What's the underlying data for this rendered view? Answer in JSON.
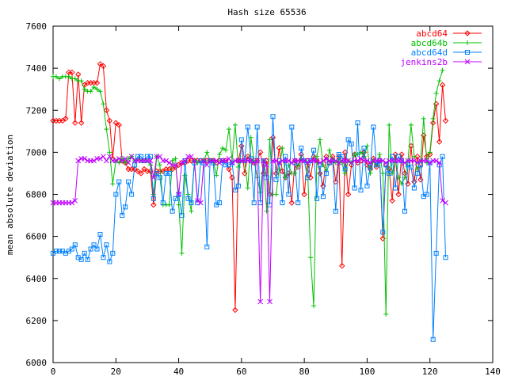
{
  "chart_data": {
    "type": "line",
    "title": "Hash size 65536",
    "xlabel": "",
    "ylabel": "mean absolute deviation",
    "xlim": [
      0,
      140
    ],
    "ylim": [
      6000,
      7600
    ],
    "x_ticks": [
      0,
      20,
      40,
      60,
      80,
      100,
      120,
      140
    ],
    "y_ticks": [
      6000,
      6200,
      6400,
      6600,
      6800,
      7000,
      7200,
      7400,
      7600
    ],
    "grid": false,
    "legend_position": "top-right",
    "series": [
      {
        "name": "abcd64",
        "color": "#ff0000",
        "marker": "diamond",
        "values": [
          7150,
          7150,
          7150,
          7150,
          7160,
          7380,
          7380,
          7140,
          7370,
          7140,
          7320,
          7330,
          7330,
          7330,
          7330,
          7420,
          7410,
          7200,
          7150,
          6970,
          7140,
          7130,
          6960,
          6950,
          6920,
          6920,
          6920,
          6910,
          6900,
          6920,
          6910,
          6910,
          6750,
          6910,
          6910,
          6910,
          6920,
          6920,
          6920,
          6930,
          6940,
          6950,
          6950,
          6960,
          6960,
          6960,
          6960,
          6960,
          6960,
          6960,
          6960,
          6960,
          6950,
          6960,
          6960,
          6960,
          6920,
          6880,
          6250,
          6960,
          7030,
          6900,
          6980,
          6960,
          6950,
          6960,
          7000,
          6900,
          6960,
          6800,
          7070,
          6900,
          7020,
          6910,
          6880,
          6900,
          6760,
          6960,
          6930,
          6990,
          6800,
          6960,
          6880,
          6980,
          6960,
          6900,
          6840,
          6980,
          6950,
          6980,
          6860,
          6980,
          6460,
          7000,
          6800,
          6940,
          6990,
          6950,
          6960,
          7000,
          6940,
          6920,
          6970,
          6930,
          6960,
          6590,
          6940,
          6920,
          6770,
          6990,
          6800,
          6990,
          6900,
          6850,
          7030,
          6860,
          6980,
          6870,
          7080,
          6980,
          6990,
          7140,
          7230,
          7050,
          7320,
          7150
        ]
      },
      {
        "name": "abcd64b",
        "color": "#00c000",
        "marker": "plus",
        "values": [
          7360,
          7360,
          7350,
          7360,
          7360,
          7360,
          7350,
          7350,
          7340,
          7340,
          7300,
          7290,
          7290,
          7310,
          7300,
          7290,
          7230,
          7110,
          7000,
          6850,
          6960,
          6950,
          6970,
          6950,
          6970,
          6980,
          6960,
          6970,
          6960,
          6960,
          6960,
          6940,
          6800,
          6980,
          6940,
          6750,
          6750,
          6750,
          6960,
          6970,
          6750,
          6520,
          6890,
          6800,
          6720,
          6960,
          6950,
          6950,
          6960,
          7000,
          6960,
          6960,
          6890,
          6990,
          7020,
          7010,
          7110,
          6960,
          7130,
          6930,
          6960,
          6960,
          6830,
          7070,
          6960,
          6880,
          6810,
          6960,
          6720,
          7060,
          6800,
          6800,
          6920,
          7020,
          6880,
          6940,
          6900,
          6900,
          6940,
          6970,
          6960,
          6950,
          6500,
          6270,
          6980,
          7060,
          6940,
          6910,
          7010,
          6960,
          6950,
          6970,
          6950,
          6900,
          6960,
          6950,
          6990,
          6990,
          7000,
          6980,
          7030,
          6900,
          6960,
          6940,
          6990,
          6900,
          6230,
          7130,
          6900,
          6960,
          6880,
          6850,
          6880,
          6960,
          7130,
          6980,
          6920,
          6960,
          7160,
          6950,
          7000,
          7160,
          7280,
          7340,
          7390
        ]
      },
      {
        "name": "abcd64d",
        "color": "#0080ff",
        "marker": "square",
        "values": [
          6520,
          6530,
          6530,
          6530,
          6520,
          6530,
          6540,
          6560,
          6500,
          6490,
          6520,
          6490,
          6540,
          6560,
          6540,
          6610,
          6500,
          6560,
          6480,
          6520,
          6800,
          6860,
          6700,
          6740,
          6860,
          6800,
          6940,
          6980,
          6980,
          6960,
          6980,
          6980,
          6780,
          6900,
          6880,
          6760,
          6900,
          6900,
          6720,
          6780,
          6800,
          6700,
          6960,
          6780,
          6760,
          6950,
          6760,
          6960,
          6950,
          6550,
          6960,
          6950,
          6750,
          6760,
          6960,
          6940,
          6940,
          6950,
          6820,
          6840,
          7060,
          6960,
          7120,
          6970,
          6760,
          7120,
          6760,
          6960,
          6880,
          6750,
          7170,
          6870,
          6960,
          6760,
          6980,
          6800,
          7120,
          6950,
          6760,
          7020,
          6960,
          6880,
          6960,
          7010,
          6780,
          6940,
          6790,
          6900,
          6950,
          6960,
          6720,
          6990,
          6980,
          6920,
          7060,
          7040,
          6830,
          7140,
          6820,
          7020,
          6840,
          6930,
          7120,
          6940,
          6960,
          6620,
          6940,
          6900,
          6980,
          6830,
          6980,
          6960,
          6720,
          6940,
          6930,
          6830,
          6900,
          6940,
          6790,
          6800,
          6950,
          6110,
          6520,
          6940,
          6980,
          6500
        ]
      },
      {
        "name": "jenkins2b",
        "color": "#c000ff",
        "marker": "cross",
        "values": [
          6760,
          6760,
          6760,
          6760,
          6760,
          6760,
          6760,
          6770,
          6960,
          6970,
          6970,
          6960,
          6960,
          6960,
          6970,
          6970,
          6980,
          6960,
          6980,
          6960,
          6960,
          6970,
          6960,
          6970,
          6950,
          6980,
          6960,
          6960,
          6960,
          6960,
          6960,
          6960,
          6880,
          6980,
          6980,
          6960,
          6960,
          6950,
          6940,
          6940,
          6800,
          6950,
          6960,
          6980,
          6980,
          6960,
          6770,
          6760,
          6960,
          6940,
          6960,
          6960,
          6960,
          6950,
          6960,
          6960,
          6970,
          6950,
          6960,
          6960,
          6960,
          6960,
          6960,
          6960,
          6950,
          6960,
          6290,
          6960,
          6940,
          6290,
          6960,
          6960,
          6950,
          6960,
          6960,
          6960,
          6950,
          6960,
          6960,
          6960,
          6960,
          6950,
          6960,
          6960,
          6960,
          6950,
          6960,
          6970,
          6960,
          6960,
          6960,
          6950,
          6960,
          6960,
          6960,
          6950,
          6960,
          6960,
          6970,
          6960,
          6960,
          6950,
          6960,
          6960,
          6960,
          6960,
          6950,
          6960,
          6960,
          6960,
          6960,
          6960,
          6950,
          6960,
          6960,
          6960,
          6950,
          6960,
          6960,
          6960,
          6950,
          6960,
          6960,
          6950,
          6770,
          6760
        ]
      }
    ]
  }
}
